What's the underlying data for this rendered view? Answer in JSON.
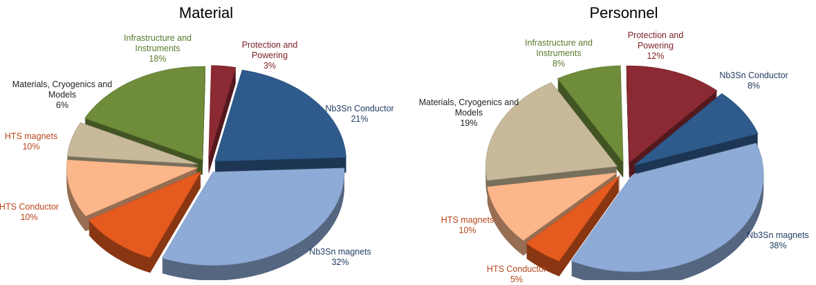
{
  "chart_data": [
    {
      "type": "pie",
      "title": "Material",
      "categories": [
        "Nb3Sn Conductor",
        "Nb3Sn magnets",
        "HTS Conductor",
        "HTS magnets",
        "Materials, Cryogenics and Models",
        "Infrastructure and Instruments",
        "Protection and Powering"
      ],
      "values": [
        21,
        32,
        10,
        10,
        6,
        18,
        3
      ],
      "value_labels": [
        "21%",
        "32%",
        "10%",
        "10%",
        "6%",
        "18%",
        "3%"
      ],
      "colors": [
        "#2e5a8c",
        "#8eaad6",
        "#e55a1f",
        "#fbb78a",
        "#c7b99a",
        "#6e8c3a",
        "#8b2a32"
      ]
    },
    {
      "type": "pie",
      "title": "Personnel",
      "categories": [
        "Nb3Sn Conductor",
        "Nb3Sn magnets",
        "HTS Conductor",
        "HTS magnets",
        "Materials, Cryogenics and Models",
        "Infrastructure and Instruments",
        "Protection and Powering"
      ],
      "values": [
        8,
        38,
        5,
        10,
        19,
        8,
        12
      ],
      "value_labels": [
        "8%",
        "38%",
        "5%",
        "10%",
        "19%",
        "8%",
        "12%"
      ],
      "colors": [
        "#2e5a8c",
        "#8eaad6",
        "#e55a1f",
        "#fbb78a",
        "#c7b99a",
        "#6e8c3a",
        "#8b2a32"
      ]
    }
  ]
}
